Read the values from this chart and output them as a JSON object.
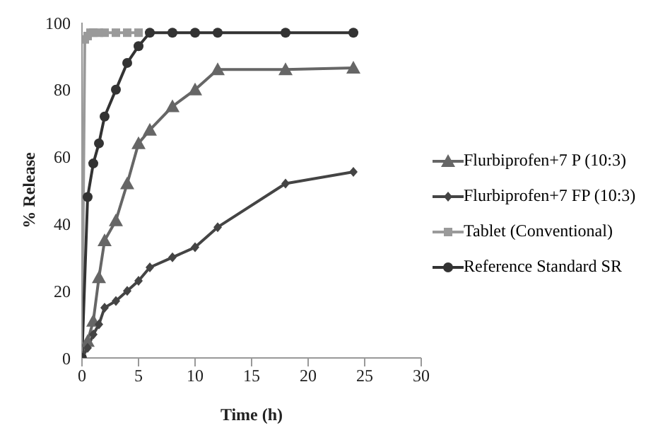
{
  "chart_data": {
    "type": "line",
    "xlabel": "Time (h)",
    "ylabel": "% Release",
    "xlim": [
      0,
      30
    ],
    "xticks": [
      0,
      5,
      10,
      15,
      20,
      25,
      30
    ],
    "ylim": [
      0,
      100
    ],
    "yticks": [
      0,
      20,
      40,
      60,
      80,
      100
    ],
    "grid": false,
    "legend": "right",
    "line_style": "solid",
    "series": [
      {
        "name": "Flurbiprofen+7 P (10:3)",
        "color": "#666666",
        "marker": "triangle",
        "x": [
          0,
          0.5,
          1,
          1.5,
          2,
          3,
          4,
          5,
          6,
          8,
          10,
          12,
          18,
          24
        ],
        "values": [
          0,
          5,
          11,
          24,
          35,
          41,
          52,
          64,
          68,
          75,
          80,
          86,
          86,
          86.5
        ]
      },
      {
        "name": "Flurbiprofen+7 FP (10:3)",
        "color": "#444444",
        "marker": "diamond",
        "x": [
          0,
          0.5,
          1,
          1.5,
          2,
          3,
          4,
          5,
          6,
          8,
          10,
          12,
          18,
          24
        ],
        "values": [
          0,
          3,
          7,
          10,
          15,
          17,
          20,
          23,
          27,
          30,
          33,
          39,
          52,
          55.5
        ]
      },
      {
        "name": "Tablet (Conventional)",
        "color": "#9a9a9a",
        "marker": "square",
        "x": [
          0,
          0.25,
          0.5,
          0.75,
          1,
          1.5,
          2,
          3,
          4,
          5
        ],
        "values": [
          0,
          95,
          96,
          97,
          97,
          97,
          97,
          97,
          97,
          97
        ]
      },
      {
        "name": "Reference Standard SR",
        "color": "#333333",
        "marker": "circle",
        "x": [
          0,
          0.5,
          1,
          1.5,
          2,
          3,
          4,
          5,
          6,
          8,
          10,
          12,
          18,
          24
        ],
        "values": [
          0,
          48,
          58,
          64,
          72,
          80,
          88,
          93,
          97,
          97,
          97,
          97,
          97,
          97
        ]
      }
    ]
  }
}
